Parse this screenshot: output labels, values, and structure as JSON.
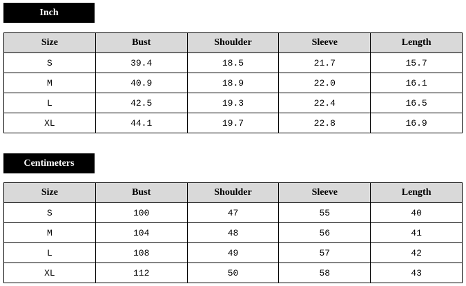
{
  "inch": {
    "label": "Inch",
    "headers": [
      "Size",
      "Bust",
      "Shoulder",
      "Sleeve",
      "Length"
    ],
    "rows": [
      [
        "S",
        "39.4",
        "18.5",
        "21.7",
        "15.7"
      ],
      [
        "M",
        "40.9",
        "18.9",
        "22.0",
        "16.1"
      ],
      [
        "L",
        "42.5",
        "19.3",
        "22.4",
        "16.5"
      ],
      [
        "XL",
        "44.1",
        "19.7",
        "22.8",
        "16.9"
      ]
    ]
  },
  "cm": {
    "label": "Centimeters",
    "headers": [
      "Size",
      "Bust",
      "Shoulder",
      "Sleeve",
      "Length"
    ],
    "rows": [
      [
        "S",
        "100",
        "47",
        "55",
        "40"
      ],
      [
        "M",
        "104",
        "48",
        "56",
        "41"
      ],
      [
        "L",
        "108",
        "49",
        "57",
        "42"
      ],
      [
        "XL",
        "112",
        "50",
        "58",
        "43"
      ]
    ]
  }
}
